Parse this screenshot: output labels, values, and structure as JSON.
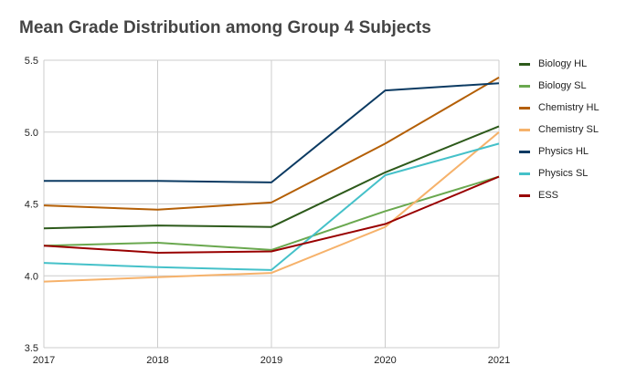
{
  "chart_data": {
    "type": "line",
    "title": "Mean Grade Distribution among Group 4 Subjects",
    "xlabel": "",
    "ylabel": "",
    "categories": [
      "2017",
      "2018",
      "2019",
      "2020",
      "2021"
    ],
    "ylim": [
      3.5,
      5.5
    ],
    "yticks": [
      3.5,
      4.0,
      4.5,
      5.0,
      5.5
    ],
    "ytick_labels": [
      "3.5",
      "4.0",
      "4.5",
      "5.0",
      "5.5"
    ],
    "grid": true,
    "legend_position": "right",
    "series": [
      {
        "name": "Biology HL",
        "color": "#2d5a1b",
        "values": [
          4.33,
          4.35,
          4.34,
          4.72,
          5.04
        ]
      },
      {
        "name": "Biology SL",
        "color": "#6aa84f",
        "values": [
          4.21,
          4.23,
          4.18,
          4.45,
          4.69
        ]
      },
      {
        "name": "Chemistry HL",
        "color": "#b45f06",
        "values": [
          4.49,
          4.46,
          4.51,
          4.92,
          5.38
        ]
      },
      {
        "name": "Chemistry SL",
        "color": "#f6b26b",
        "values": [
          3.96,
          3.99,
          4.02,
          4.34,
          5.0
        ]
      },
      {
        "name": "Physics HL",
        "color": "#0b3a62",
        "values": [
          4.66,
          4.66,
          4.65,
          5.29,
          5.34
        ]
      },
      {
        "name": "Physics SL",
        "color": "#45c1c9",
        "values": [
          4.09,
          4.06,
          4.04,
          4.7,
          4.92
        ]
      },
      {
        "name": "ESS",
        "color": "#990000",
        "values": [
          4.21,
          4.16,
          4.17,
          4.36,
          4.69
        ]
      }
    ]
  }
}
